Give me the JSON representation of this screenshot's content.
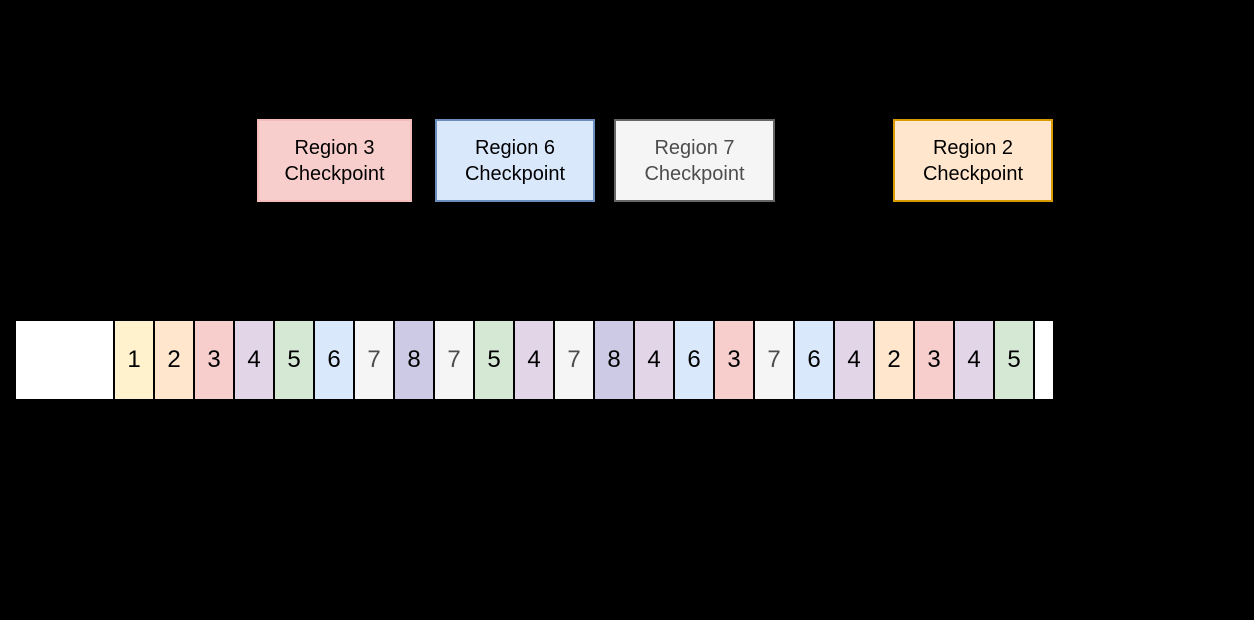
{
  "diagram": {
    "background": "#000000",
    "checkpoints": [
      {
        "line1": "Region 3",
        "line2": "Checkpoint",
        "fill": "#F8CECC",
        "stroke": "#F2BDBB",
        "text_color": "#000000"
      },
      {
        "line1": "Region 6",
        "line2": "Checkpoint",
        "fill": "#DAE8FC",
        "stroke": "#6C8EBF",
        "text_color": "#000000"
      },
      {
        "line1": "Region 7",
        "line2": "Checkpoint",
        "fill": "#F5F5F5",
        "stroke": "#666666",
        "text_color": "#4D4D4D"
      },
      {
        "line1": "Region 2",
        "line2": "Checkpoint",
        "fill": "#FFE6CC",
        "stroke": "#D79B00",
        "text_color": "#000000"
      }
    ],
    "strip": {
      "lead_block_fill": "#FFFFFF",
      "tail_block_fill": "#FFFFFF",
      "sequence": [
        "1",
        "2",
        "3",
        "4",
        "5",
        "6",
        "7",
        "8",
        "7",
        "5",
        "4",
        "7",
        "8",
        "4",
        "6",
        "3",
        "7",
        "6",
        "4",
        "2",
        "3",
        "4",
        "5"
      ],
      "value_colors": {
        "1": {
          "fill": "#FFF2CC",
          "text": "#000000"
        },
        "2": {
          "fill": "#FFE6CC",
          "text": "#000000"
        },
        "3": {
          "fill": "#F8CECC",
          "text": "#000000"
        },
        "4": {
          "fill": "#E1D5E7",
          "text": "#000000"
        },
        "5": {
          "fill": "#D5E8D4",
          "text": "#000000"
        },
        "6": {
          "fill": "#DAE8FC",
          "text": "#000000"
        },
        "7": {
          "fill": "#F5F5F5",
          "text": "#4D4D4D"
        },
        "8": {
          "fill": "#CCCAE4",
          "text": "#000000"
        }
      }
    }
  }
}
